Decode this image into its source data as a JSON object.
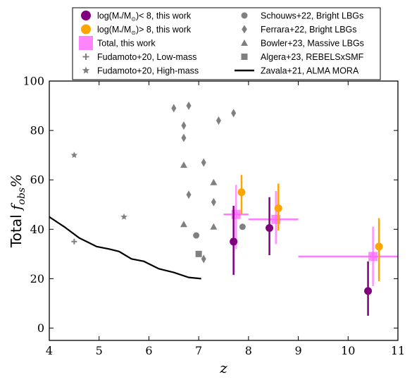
{
  "chart_data": {
    "type": "scatter",
    "xlabel": "z",
    "ylabel": {
      "prefix": "Total ",
      "math": "f",
      "sub": "obs",
      "suffix": "%"
    },
    "xlim": [
      4,
      11
    ],
    "ylim": [
      -5,
      100
    ],
    "xticks": [
      4,
      5,
      6,
      7,
      8,
      9,
      10,
      11
    ],
    "yticks": [
      0,
      20,
      40,
      60,
      80,
      100
    ],
    "legend_position": "top, outside above plot",
    "series": [
      {
        "id": "low_mass_this_work",
        "name": "log(M*/M☉)< 8, this work",
        "legend_parts": {
          "pre": "log(M",
          "sub": "*",
          "mid": "/M",
          "sub2": "⊙",
          "post": ")< 8, this work"
        },
        "color": "#800080",
        "marker": "circle",
        "points": [
          {
            "x": 7.7,
            "y": 35.0,
            "ylo": 21.5,
            "yhi": 49.5
          },
          {
            "x": 8.42,
            "y": 40.5,
            "ylo": 29.5,
            "yhi": 53.0
          },
          {
            "x": 10.4,
            "y": 15.0,
            "ylo": 5.0,
            "yhi": 27.0
          }
        ]
      },
      {
        "id": "high_mass_this_work",
        "name": "log(M*/M☉)> 8, this work",
        "legend_parts": {
          "pre": "log(M",
          "sub": "*",
          "mid": "/M",
          "sub2": "⊙",
          "post": ")> 8, this work"
        },
        "color": "#FFA500",
        "marker": "circle",
        "points": [
          {
            "x": 7.86,
            "y": 55.0,
            "ylo": 46.0,
            "yhi": 62.0
          },
          {
            "x": 8.6,
            "y": 48.5,
            "ylo": 39.5,
            "yhi": 58.5
          },
          {
            "x": 10.62,
            "y": 33.0,
            "ylo": 19.0,
            "yhi": 44.5
          }
        ]
      },
      {
        "id": "total_this_work",
        "name": "Total, this work",
        "color": "#FF66FF",
        "marker": "square",
        "points": [
          {
            "x": 7.75,
            "y": 46.0,
            "xlo": 7.5,
            "xhi": 8.0,
            "ylo": 32.0,
            "yhi": 58.0
          },
          {
            "x": 8.55,
            "y": 44.0,
            "xlo": 8.0,
            "xhi": 9.0,
            "ylo": 34.0,
            "yhi": 55.5
          },
          {
            "x": 10.5,
            "y": 29.0,
            "xlo": 9.0,
            "xhi": 11.0,
            "ylo": 17.0,
            "yhi": 41.0
          }
        ]
      },
      {
        "id": "fudamoto_low",
        "name": "Fudamoto+20, Low-mass",
        "color": "#808080",
        "marker": "plus",
        "points": [
          {
            "x": 4.5,
            "y": 35.0
          }
        ]
      },
      {
        "id": "fudamoto_high",
        "name": "Fudamoto+20, High-mass",
        "color": "#808080",
        "marker": "star",
        "points": [
          {
            "x": 4.5,
            "y": 70.0
          },
          {
            "x": 5.5,
            "y": 45.0
          }
        ]
      },
      {
        "id": "schouws",
        "name": "Schouws+22, Bright LBGs",
        "color": "#808080",
        "marker": "circle",
        "points": [
          {
            "x": 6.95,
            "y": 37.5
          },
          {
            "x": 7.88,
            "y": 41.0
          }
        ]
      },
      {
        "id": "ferrara",
        "name": "Ferrara+22, Bright LBGs",
        "color": "#808080",
        "marker": "diamond",
        "points": [
          {
            "x": 6.5,
            "y": 89.0
          },
          {
            "x": 6.8,
            "y": 90.0
          },
          {
            "x": 6.7,
            "y": 82.0
          },
          {
            "x": 6.7,
            "y": 77.0
          },
          {
            "x": 7.7,
            "y": 87.0
          },
          {
            "x": 7.4,
            "y": 84.0
          },
          {
            "x": 7.1,
            "y": 67.0
          },
          {
            "x": 6.8,
            "y": 54.0
          },
          {
            "x": 7.3,
            "y": 51.0
          },
          {
            "x": 7.1,
            "y": 28.0
          }
        ]
      },
      {
        "id": "bowler",
        "name": "Bowler+23, Massive LBGs",
        "color": "#808080",
        "marker": "triangle",
        "points": [
          {
            "x": 6.7,
            "y": 66.0
          },
          {
            "x": 7.3,
            "y": 59.0
          },
          {
            "x": 6.7,
            "y": 42.0
          },
          {
            "x": 7.3,
            "y": 41.0
          }
        ]
      },
      {
        "id": "algera",
        "name": "Algera+23, REBELSxSMF",
        "color": "#808080",
        "marker": "square",
        "points": [
          {
            "x": 7.0,
            "y": 30.0
          }
        ]
      },
      {
        "id": "zavala",
        "name": "Zavala+21, ALMA MORA",
        "color": "#000000",
        "marker": "line",
        "points": [
          {
            "x": 4.0,
            "y": 45.0
          },
          {
            "x": 4.3,
            "y": 41.0
          },
          {
            "x": 4.6,
            "y": 36.5
          },
          {
            "x": 4.95,
            "y": 33.0
          },
          {
            "x": 5.2,
            "y": 32.0
          },
          {
            "x": 5.4,
            "y": 31.0
          },
          {
            "x": 5.65,
            "y": 28.0
          },
          {
            "x": 5.9,
            "y": 27.0
          },
          {
            "x": 6.2,
            "y": 24.0
          },
          {
            "x": 6.5,
            "y": 22.5
          },
          {
            "x": 6.8,
            "y": 20.5
          },
          {
            "x": 7.05,
            "y": 20.0
          }
        ]
      }
    ],
    "legend_order": [
      "low_mass_this_work",
      "schouws",
      "high_mass_this_work",
      "ferrara",
      "total_this_work",
      "bowler",
      "fudamoto_low",
      "algera",
      "fudamoto_high",
      "zavala"
    ]
  }
}
